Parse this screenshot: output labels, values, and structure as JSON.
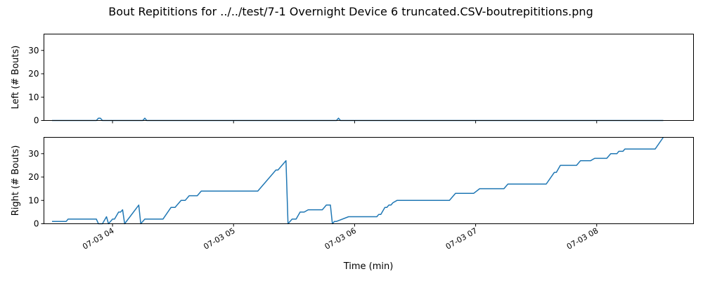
{
  "chart_data": [
    {
      "type": "line",
      "title": "Bout Repititions for ../../test/7-1 Overnight Device 6 truncated.CSV-boutrepititions.png",
      "xlabel": "",
      "ylabel": "Left (# Bouts)",
      "ylim": [
        0,
        37
      ],
      "yticks": [
        0,
        10,
        20,
        30
      ],
      "xlim": [
        "2024-07-03 03:26",
        "2024-07-03 08:48"
      ],
      "color": "#1f77b4",
      "grid": false,
      "series": [
        {
          "x": [
            "2024-07-03 03:30",
            "2024-07-03 03:52",
            "2024-07-03 03:53",
            "2024-07-03 03:54",
            "2024-07-03 03:55",
            "2024-07-03 04:15",
            "2024-07-03 04:16",
            "2024-07-03 04:17",
            "2024-07-03 05:51",
            "2024-07-03 05:52",
            "2024-07-03 05:53",
            "2024-07-03 08:33"
          ],
          "values": [
            0,
            0,
            1,
            1,
            0,
            0,
            1,
            0,
            0,
            1,
            0,
            0
          ]
        }
      ]
    },
    {
      "type": "line",
      "xlabel": "Time (min)",
      "ylabel": "Right (# Bouts)",
      "ylim": [
        0,
        37
      ],
      "yticks": [
        0,
        10,
        20,
        30
      ],
      "xlim": [
        "2024-07-03 03:26",
        "2024-07-03 08:48"
      ],
      "xticks": [
        "07-03 04",
        "07-03 05",
        "07-03 06",
        "07-03 07",
        "07-03 08"
      ],
      "color": "#1f77b4",
      "grid": false,
      "series": [
        {
          "x": [
            "2024-07-03 03:30",
            "2024-07-03 03:37",
            "2024-07-03 03:38",
            "2024-07-03 03:52",
            "2024-07-03 03:53",
            "2024-07-03 03:55",
            "2024-07-03 03:57",
            "2024-07-03 03:58",
            "2024-07-03 04:00",
            "2024-07-03 04:01",
            "2024-07-03 04:03",
            "2024-07-03 04:04",
            "2024-07-03 04:05",
            "2024-07-03 04:06",
            "2024-07-03 04:13",
            "2024-07-03 04:14",
            "2024-07-03 04:16",
            "2024-07-03 04:17",
            "2024-07-03 04:25",
            "2024-07-03 04:29",
            "2024-07-03 04:31",
            "2024-07-03 04:34",
            "2024-07-03 04:36",
            "2024-07-03 04:38",
            "2024-07-03 04:42",
            "2024-07-03 04:44",
            "2024-07-03 05:12",
            "2024-07-03 05:21",
            "2024-07-03 05:22",
            "2024-07-03 05:26",
            "2024-07-03 05:27",
            "2024-07-03 05:29",
            "2024-07-03 05:31",
            "2024-07-03 05:33",
            "2024-07-03 05:35",
            "2024-07-03 05:37",
            "2024-07-03 05:38",
            "2024-07-03 05:44",
            "2024-07-03 05:46",
            "2024-07-03 05:48",
            "2024-07-03 05:49",
            "2024-07-03 05:50",
            "2024-07-03 05:51",
            "2024-07-03 05:57",
            "2024-07-03 05:59",
            "2024-07-03 06:11",
            "2024-07-03 06:12",
            "2024-07-03 06:13",
            "2024-07-03 06:15",
            "2024-07-03 06:16",
            "2024-07-03 06:17",
            "2024-07-03 06:18",
            "2024-07-03 06:19",
            "2024-07-03 06:21",
            "2024-07-03 06:47",
            "2024-07-03 06:50",
            "2024-07-03 06:59",
            "2024-07-03 07:02",
            "2024-07-03 07:14",
            "2024-07-03 07:16",
            "2024-07-03 07:35",
            "2024-07-03 07:39",
            "2024-07-03 07:40",
            "2024-07-03 07:42",
            "2024-07-03 07:50",
            "2024-07-03 07:52",
            "2024-07-03 07:57",
            "2024-07-03 07:59",
            "2024-07-03 08:05",
            "2024-07-03 08:07",
            "2024-07-03 08:10",
            "2024-07-03 08:11",
            "2024-07-03 08:13",
            "2024-07-03 08:14",
            "2024-07-03 08:16",
            "2024-07-03 08:29",
            "2024-07-03 08:33"
          ],
          "values": [
            1,
            1,
            2,
            2,
            0,
            0,
            3,
            0,
            2,
            2,
            5,
            5,
            6,
            0,
            8,
            0,
            2,
            2,
            2,
            7,
            7,
            10,
            10,
            12,
            12,
            14,
            14,
            23,
            23,
            27,
            0,
            2,
            2,
            5,
            5,
            6,
            6,
            6,
            8,
            8,
            0,
            1,
            1,
            3,
            3,
            3,
            4,
            4,
            7,
            7,
            8,
            8,
            9,
            10,
            10,
            13,
            13,
            15,
            15,
            17,
            17,
            22,
            22,
            25,
            25,
            27,
            27,
            28,
            28,
            30,
            30,
            31,
            31,
            32,
            32,
            32,
            37
          ]
        }
      ]
    }
  ]
}
